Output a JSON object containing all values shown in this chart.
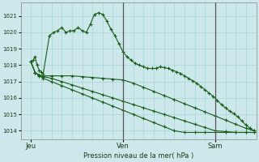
{
  "xlabel": "Pression niveau de la mer( hPa )",
  "bg_color": "#cce8ea",
  "grid_color_h": "#b0d8da",
  "grid_color_v": "#c8e4e6",
  "line_color": "#1a5c1a",
  "vline_color": "#2d2d2d",
  "ylim": [
    1013.5,
    1021.8
  ],
  "xlim": [
    0,
    115
  ],
  "yticks": [
    1014,
    1015,
    1016,
    1017,
    1018,
    1019,
    1020,
    1021
  ],
  "day_labels": [
    "Jeu",
    "Ven",
    "Sam"
  ],
  "day_positions": [
    5,
    50,
    95
  ],
  "vlines": [
    50,
    95
  ],
  "series1_x": [
    5,
    6,
    7,
    8,
    9,
    10,
    11,
    14,
    16,
    18,
    20,
    22,
    24,
    26,
    28,
    30,
    32,
    34,
    36,
    38,
    40,
    42,
    44,
    46,
    48,
    50,
    52,
    54,
    56,
    58,
    60,
    62,
    64,
    66,
    68,
    70,
    72,
    74,
    76,
    78,
    80,
    82,
    84,
    86,
    88,
    90,
    92,
    94,
    96,
    98,
    100,
    102,
    104,
    106,
    108,
    110,
    112,
    114
  ],
  "series1_y": [
    1018.2,
    1018.3,
    1018.5,
    1018.0,
    1017.7,
    1017.6,
    1017.5,
    1019.8,
    1020.0,
    1020.1,
    1020.3,
    1020.0,
    1020.1,
    1020.1,
    1020.3,
    1020.1,
    1020.0,
    1020.5,
    1021.1,
    1021.2,
    1021.1,
    1020.7,
    1020.2,
    1019.8,
    1019.3,
    1018.8,
    1018.5,
    1018.3,
    1018.1,
    1018.0,
    1017.9,
    1017.8,
    1017.8,
    1017.8,
    1017.9,
    1017.85,
    1017.8,
    1017.7,
    1017.6,
    1017.5,
    1017.35,
    1017.2,
    1017.05,
    1016.9,
    1016.7,
    1016.5,
    1016.3,
    1016.1,
    1015.85,
    1015.6,
    1015.4,
    1015.2,
    1015.05,
    1014.85,
    1014.6,
    1014.35,
    1014.15,
    1014.0
  ],
  "series2_x": [
    5,
    7,
    9,
    11,
    15,
    20,
    25,
    30,
    35,
    40,
    45,
    50,
    55,
    60,
    65,
    70,
    75,
    80,
    85,
    90,
    95,
    100,
    105,
    110,
    114
  ],
  "series2_y": [
    1018.2,
    1017.55,
    1017.4,
    1017.35,
    1017.35,
    1017.35,
    1017.35,
    1017.3,
    1017.25,
    1017.2,
    1017.15,
    1017.1,
    1016.9,
    1016.65,
    1016.4,
    1016.15,
    1015.9,
    1015.65,
    1015.4,
    1015.15,
    1014.9,
    1014.65,
    1014.4,
    1014.15,
    1014.0
  ],
  "series3_x": [
    5,
    7,
    9,
    11,
    15,
    20,
    25,
    30,
    35,
    40,
    45,
    50,
    55,
    60,
    65,
    70,
    75,
    80,
    85,
    90,
    95,
    100,
    105,
    110,
    114
  ],
  "series3_y": [
    1018.2,
    1017.55,
    1017.4,
    1017.3,
    1017.2,
    1017.0,
    1016.8,
    1016.6,
    1016.4,
    1016.2,
    1016.0,
    1015.8,
    1015.6,
    1015.4,
    1015.2,
    1015.0,
    1014.8,
    1014.6,
    1014.4,
    1014.2,
    1014.0,
    1013.95,
    1013.9,
    1013.9,
    1013.9
  ],
  "series4_x": [
    5,
    7,
    9,
    11,
    15,
    20,
    25,
    30,
    35,
    40,
    45,
    50,
    55,
    60,
    65,
    70,
    75,
    80,
    85,
    90,
    95,
    100,
    105,
    110,
    114
  ],
  "series4_y": [
    1018.2,
    1017.55,
    1017.35,
    1017.2,
    1017.0,
    1016.75,
    1016.5,
    1016.25,
    1016.0,
    1015.75,
    1015.5,
    1015.25,
    1015.0,
    1014.75,
    1014.5,
    1014.25,
    1014.0,
    1013.9,
    1013.9,
    1013.9,
    1013.9,
    1013.9,
    1013.9,
    1013.9,
    1013.9
  ]
}
